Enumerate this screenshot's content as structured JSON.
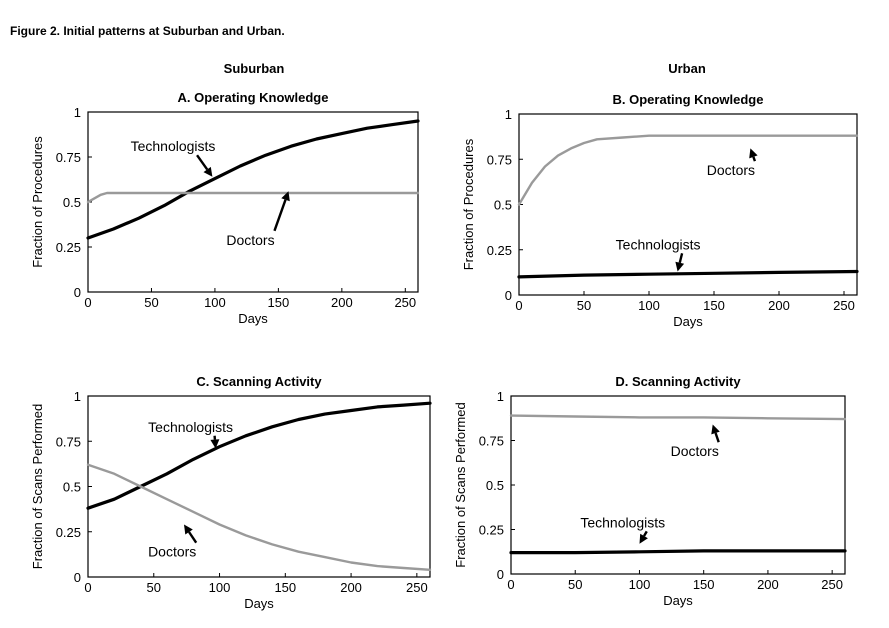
{
  "figure": {
    "title": "Figure 2. Initial patterns at Suburban and Urban.",
    "columns": [
      "Suburban",
      "Urban"
    ]
  },
  "chart_data": [
    {
      "type": "line",
      "title": "A. Operating Knowledge",
      "column": "Suburban",
      "xlabel": "Days",
      "ylabel": "Fraction of Procedures",
      "xlim": [
        0,
        260
      ],
      "ylim": [
        0,
        1
      ],
      "xticks": [
        0,
        50,
        100,
        150,
        200,
        250
      ],
      "yticks": [
        0,
        0.25,
        0.5,
        0.75,
        1
      ],
      "ytick_labels": [
        "0",
        "0.25",
        "0.5",
        "0.75",
        "1"
      ],
      "series": [
        {
          "name": "Technologists",
          "style": "solid-thick",
          "color": "#000000",
          "x": [
            0,
            20,
            40,
            60,
            80,
            100,
            120,
            140,
            160,
            180,
            200,
            220,
            240,
            260
          ],
          "y": [
            0.3,
            0.35,
            0.41,
            0.48,
            0.56,
            0.63,
            0.7,
            0.76,
            0.81,
            0.85,
            0.88,
            0.91,
            0.93,
            0.95
          ]
        },
        {
          "name": "Doctors",
          "style": "gray",
          "color": "#9a9a9a",
          "x": [
            0,
            5,
            10,
            15,
            20,
            30,
            50,
            100,
            150,
            200,
            260
          ],
          "y": [
            0.5,
            0.52,
            0.54,
            0.55,
            0.55,
            0.55,
            0.55,
            0.55,
            0.55,
            0.55,
            0.55
          ]
        }
      ],
      "annotations": [
        {
          "text": "Technologists",
          "series": "Technologists",
          "at_x": 98,
          "at_y": 0.64,
          "label_x": 67,
          "label_y": 0.81
        },
        {
          "text": "Doctors",
          "series": "Doctors",
          "at_x": 158,
          "at_y": 0.56,
          "label_x": 128,
          "label_y": 0.29
        }
      ]
    },
    {
      "type": "line",
      "title": "B. Operating Knowledge",
      "column": "Urban",
      "xlabel": "Days",
      "ylabel": "Fraction of Procedures",
      "xlim": [
        0,
        260
      ],
      "ylim": [
        0,
        1
      ],
      "xticks": [
        0,
        50,
        100,
        150,
        200,
        250
      ],
      "yticks": [
        0,
        0.25,
        0.5,
        0.75,
        1
      ],
      "ytick_labels": [
        "0",
        "0.25",
        "0.5",
        "0.75",
        "1"
      ],
      "series": [
        {
          "name": "Technologists",
          "style": "solid-thick",
          "color": "#000000",
          "x": [
            0,
            50,
            100,
            150,
            200,
            260
          ],
          "y": [
            0.1,
            0.11,
            0.115,
            0.12,
            0.125,
            0.13
          ]
        },
        {
          "name": "Doctors",
          "style": "gray",
          "color": "#9a9a9a",
          "x": [
            0,
            10,
            20,
            30,
            40,
            50,
            60,
            80,
            100,
            150,
            200,
            260
          ],
          "y": [
            0.5,
            0.62,
            0.71,
            0.77,
            0.81,
            0.84,
            0.86,
            0.87,
            0.88,
            0.88,
            0.88,
            0.88
          ]
        }
      ],
      "annotations": [
        {
          "text": "Technologists",
          "series": "Technologists",
          "at_x": 122,
          "at_y": 0.13,
          "label_x": 107,
          "label_y": 0.28
        },
        {
          "text": "Doctors",
          "series": "Doctors",
          "at_x": 178,
          "at_y": 0.81,
          "label_x": 163,
          "label_y": 0.69
        }
      ]
    },
    {
      "type": "line",
      "title": "C. Scanning Activity",
      "column": "Suburban",
      "xlabel": "Days",
      "ylabel": "Fraction of Scans Performed",
      "xlim": [
        0,
        260
      ],
      "ylim": [
        0,
        1
      ],
      "xticks": [
        0,
        50,
        100,
        150,
        200,
        250
      ],
      "yticks": [
        0,
        0.25,
        0.5,
        0.75,
        1
      ],
      "ytick_labels": [
        "0",
        "0.25",
        "0.5",
        "0.75",
        "1"
      ],
      "series": [
        {
          "name": "Technologists",
          "style": "solid-thick",
          "color": "#000000",
          "x": [
            0,
            20,
            40,
            60,
            80,
            100,
            120,
            140,
            160,
            180,
            200,
            220,
            240,
            260
          ],
          "y": [
            0.38,
            0.43,
            0.5,
            0.57,
            0.65,
            0.72,
            0.78,
            0.83,
            0.87,
            0.9,
            0.92,
            0.94,
            0.95,
            0.96
          ]
        },
        {
          "name": "Doctors",
          "style": "gray",
          "color": "#9a9a9a",
          "x": [
            0,
            20,
            40,
            60,
            80,
            100,
            120,
            140,
            160,
            180,
            200,
            220,
            240,
            260
          ],
          "y": [
            0.62,
            0.57,
            0.5,
            0.43,
            0.36,
            0.29,
            0.23,
            0.18,
            0.14,
            0.11,
            0.08,
            0.06,
            0.05,
            0.04
          ]
        }
      ],
      "annotations": [
        {
          "text": "Technologists",
          "series": "Technologists",
          "at_x": 97,
          "at_y": 0.71,
          "label_x": 78,
          "label_y": 0.83
        },
        {
          "text": "Doctors",
          "series": "Doctors",
          "at_x": 73,
          "at_y": 0.29,
          "label_x": 64,
          "label_y": 0.14
        }
      ]
    },
    {
      "type": "line",
      "title": "D. Scanning Activity",
      "column": "Urban",
      "xlabel": "Days",
      "ylabel": "Fraction of Scans Performed",
      "xlim": [
        0,
        260
      ],
      "ylim": [
        0,
        1
      ],
      "xticks": [
        0,
        50,
        100,
        150,
        200,
        250
      ],
      "yticks": [
        0,
        0.25,
        0.5,
        0.75,
        1
      ],
      "ytick_labels": [
        "0",
        "0.25",
        "0.5",
        "0.75",
        "1"
      ],
      "series": [
        {
          "name": "Technologists",
          "style": "solid-thick",
          "color": "#000000",
          "x": [
            0,
            50,
            100,
            150,
            200,
            260
          ],
          "y": [
            0.12,
            0.12,
            0.125,
            0.13,
            0.13,
            0.13
          ]
        },
        {
          "name": "Doctors",
          "style": "gray",
          "color": "#9a9a9a",
          "x": [
            0,
            50,
            100,
            150,
            200,
            260
          ],
          "y": [
            0.89,
            0.885,
            0.88,
            0.88,
            0.875,
            0.87
          ]
        }
      ],
      "annotations": [
        {
          "text": "Technologists",
          "series": "Technologists",
          "at_x": 100,
          "at_y": 0.17,
          "label_x": 87,
          "label_y": 0.29
        },
        {
          "text": "Doctors",
          "series": "Doctors",
          "at_x": 157,
          "at_y": 0.84,
          "label_x": 143,
          "label_y": 0.69
        }
      ]
    }
  ]
}
